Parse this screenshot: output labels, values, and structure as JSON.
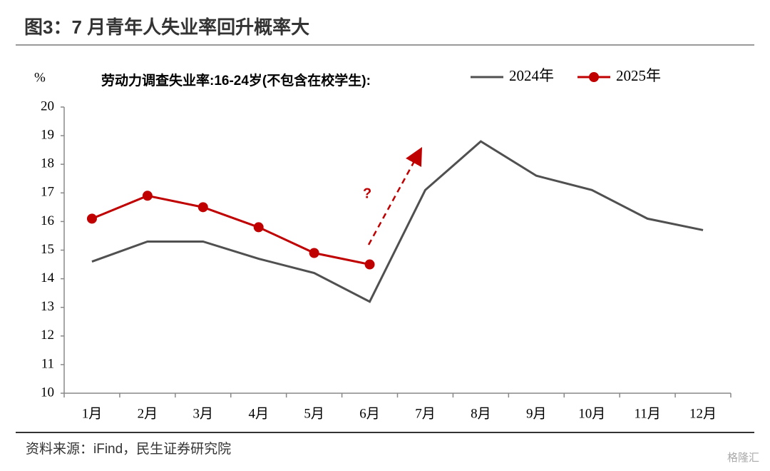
{
  "chart_data": {
    "type": "line",
    "title": "图3：7 月青年人失业率回升概率大",
    "subtitle": "劳动力调查失业率:16-24岁(不包含在校学生):",
    "y_label": "%",
    "annotation": "?",
    "source": "资料来源：iFind，民生证券研究院",
    "watermark": "格隆汇",
    "categories": [
      "1月",
      "2月",
      "3月",
      "4月",
      "5月",
      "6月",
      "7月",
      "8月",
      "9月",
      "10月",
      "11月",
      "12月"
    ],
    "series": [
      {
        "name": "2024年",
        "color": "#505050",
        "marker": false,
        "values": [
          14.6,
          15.3,
          15.3,
          14.7,
          14.2,
          13.2,
          17.1,
          18.8,
          17.6,
          17.1,
          16.1,
          15.7
        ]
      },
      {
        "name": "2025年",
        "color": "#c00000",
        "marker": true,
        "values": [
          16.1,
          16.9,
          16.5,
          15.8,
          14.9,
          14.5,
          null,
          null,
          null,
          null,
          null,
          null
        ]
      }
    ],
    "ylim": [
      10,
      20
    ],
    "yticks": [
      10,
      11,
      12,
      13,
      14,
      15,
      16,
      17,
      18,
      19,
      20
    ],
    "grid": false,
    "legend": "top"
  }
}
